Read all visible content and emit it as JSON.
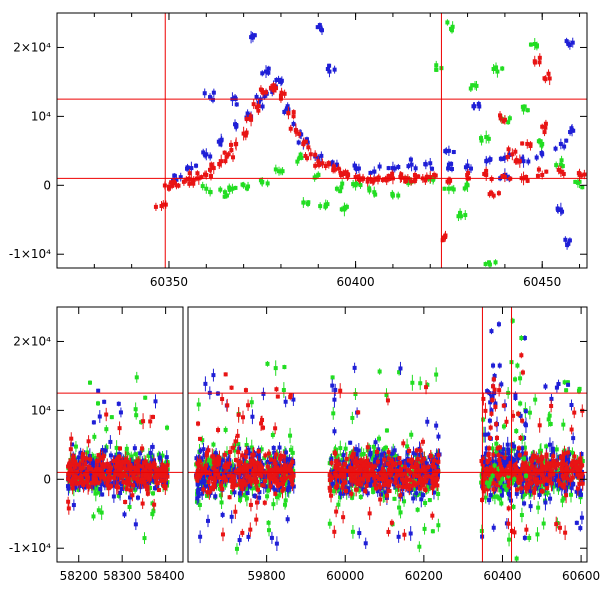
{
  "colors": {
    "blue": "#1f1fd6",
    "green": "#22dd22",
    "red": "#e81414",
    "reference_line": "#e00000",
    "axes": "#000000"
  },
  "chart_data": [
    {
      "type": "scatter",
      "title": "",
      "xlabel": "",
      "ylabel": "",
      "error_bars": true,
      "xlim": [
        60320,
        60462
      ],
      "ylim": [
        -12000,
        25000
      ],
      "x_ticks": [
        60350,
        60400,
        60450
      ],
      "x_tick_labels": [
        "60350",
        "60400",
        "60450"
      ],
      "y_ticks": [
        -10000,
        0,
        10000,
        20000
      ],
      "y_tick_labels": [
        "-1×10⁴",
        "0",
        "10⁴",
        "2×10⁴"
      ],
      "reference_lines": {
        "horizontal": [
          1000,
          12500
        ],
        "vertical": [
          60349,
          60423
        ]
      },
      "series": [
        {
          "color": "blue",
          "points": [
            [
              60352,
              800
            ],
            [
              60356,
              2500
            ],
            [
              60360,
              4500
            ],
            [
              60364,
              6500
            ],
            [
              60368,
              8500
            ],
            [
              60372,
              10000
            ],
            [
              60374,
              12000
            ],
            [
              60376,
              13500
            ],
            [
              60378,
              14500
            ],
            [
              60380,
              15000
            ],
            [
              60382,
              11000
            ],
            [
              60384,
              8000
            ],
            [
              60386,
              6000
            ],
            [
              60390,
              4000
            ],
            [
              60395,
              3000
            ],
            [
              60400,
              2500
            ],
            [
              60405,
              2000
            ],
            [
              60410,
              2500
            ],
            [
              60415,
              3000
            ],
            [
              60420,
              3200
            ],
            [
              60425,
              3000
            ],
            [
              60430,
              2800
            ],
            [
              60435,
              3500
            ],
            [
              60440,
              4000
            ],
            [
              60445,
              3500
            ],
            [
              60450,
              4500
            ],
            [
              60455,
              6000
            ],
            [
              60458,
              8000
            ],
            [
              60372,
              21500
            ],
            [
              60376,
              16500
            ],
            [
              60391,
              22500
            ],
            [
              60393,
              16500
            ],
            [
              60457,
              20500
            ],
            [
              60455,
              -3500
            ],
            [
              60457,
              -8500
            ],
            [
              60367,
              12500
            ],
            [
              60361,
              12800
            ],
            [
              60433,
              11800
            ],
            [
              60425,
              5000
            ],
            [
              60440,
              1500
            ]
          ]
        },
        {
          "color": "green",
          "points": [
            [
              60360,
              -500
            ],
            [
              60365,
              -1000
            ],
            [
              60370,
              0
            ],
            [
              60375,
              500
            ],
            [
              60380,
              2000
            ],
            [
              60385,
              4000
            ],
            [
              60390,
              1500
            ],
            [
              60395,
              -500
            ],
            [
              60400,
              0
            ],
            [
              60405,
              -1000
            ],
            [
              60410,
              -1500
            ],
            [
              60415,
              500
            ],
            [
              60420,
              1000
            ],
            [
              60425,
              -500
            ],
            [
              60430,
              0
            ],
            [
              60435,
              7000
            ],
            [
              60440,
              9500
            ],
            [
              60445,
              11000
            ],
            [
              60450,
              6000
            ],
            [
              60455,
              3000
            ],
            [
              60460,
              500
            ],
            [
              60386,
              -2500
            ],
            [
              60392,
              -2800
            ],
            [
              60397,
              -3500
            ],
            [
              60367,
              -500
            ],
            [
              60423,
              17000
            ],
            [
              60426,
              23000
            ],
            [
              60432,
              14500
            ],
            [
              60438,
              16500
            ],
            [
              60448,
              20500
            ],
            [
              60428,
              -4000
            ],
            [
              60436,
              -11500
            ]
          ]
        },
        {
          "color": "red",
          "points": [
            [
              60348,
              -3000
            ],
            [
              60350,
              -500
            ],
            [
              60352,
              0
            ],
            [
              60354,
              500
            ],
            [
              60356,
              800
            ],
            [
              60358,
              1000
            ],
            [
              60360,
              1500
            ],
            [
              60362,
              2500
            ],
            [
              60364,
              3500
            ],
            [
              60366,
              4500
            ],
            [
              60368,
              6000
            ],
            [
              60370,
              7500
            ],
            [
              60372,
              9500
            ],
            [
              60374,
              11500
            ],
            [
              60376,
              13500
            ],
            [
              60378,
              14500
            ],
            [
              60380,
              13000
            ],
            [
              60382,
              10500
            ],
            [
              60384,
              8000
            ],
            [
              60386,
              6000
            ],
            [
              60388,
              4500
            ],
            [
              60390,
              3500
            ],
            [
              60392,
              2800
            ],
            [
              60394,
              2200
            ],
            [
              60396,
              1800
            ],
            [
              60398,
              1500
            ],
            [
              60400,
              1200
            ],
            [
              60402,
              1000
            ],
            [
              60404,
              900
            ],
            [
              60406,
              800
            ],
            [
              60408,
              900
            ],
            [
              60410,
              1000
            ],
            [
              60412,
              1200
            ],
            [
              60414,
              1000
            ],
            [
              60416,
              900
            ],
            [
              60418,
              1000
            ],
            [
              60420,
              1200
            ],
            [
              60425,
              800
            ],
            [
              60430,
              1000
            ],
            [
              60435,
              1500
            ],
            [
              60440,
              1200
            ],
            [
              60445,
              1000
            ],
            [
              60450,
              1500
            ],
            [
              60455,
              2000
            ],
            [
              60460,
              1500
            ],
            [
              60424,
              -7500
            ],
            [
              60452,
              15500
            ],
            [
              60450,
              8500
            ],
            [
              60440,
              9500
            ],
            [
              60448,
              18000
            ],
            [
              60446,
              6000
            ],
            [
              60437,
              -1500
            ],
            [
              60442,
              4500
            ],
            [
              60444,
              3500
            ]
          ]
        }
      ]
    },
    {
      "type": "scatter",
      "title": "",
      "xlabel": "",
      "ylabel": "",
      "error_bars": true,
      "broken_x_axis": true,
      "x_segments": [
        {
          "xlim": [
            58150,
            58440
          ],
          "x_ticks": [
            58200,
            58300,
            58400
          ],
          "x_tick_labels": [
            "58200",
            "58300",
            "58400"
          ]
        },
        {
          "xlim": [
            59600,
            60615
          ],
          "x_ticks": [
            59800,
            60000,
            60200,
            60400,
            60600
          ],
          "x_tick_labels": [
            "59800",
            "60000",
            "60200",
            "60400",
            "60600"
          ]
        }
      ],
      "ylim": [
        -12000,
        25000
      ],
      "y_ticks": [
        -10000,
        0,
        10000,
        20000
      ],
      "y_tick_labels": [
        "-1×10⁴",
        "0",
        "10⁴",
        "2×10⁴"
      ],
      "reference_lines": {
        "horizontal": [
          1000,
          12500
        ],
        "vertical": [
          60349,
          60423
        ]
      },
      "observing_seasons": [
        {
          "range": [
            58175,
            58405
          ],
          "color": "blue",
          "spread": 4000,
          "outlier_spread": 10000
        },
        {
          "range": [
            58175,
            58405
          ],
          "color": "green",
          "spread": 4500,
          "outlier_spread": 12000
        },
        {
          "range": [
            58175,
            58405
          ],
          "color": "red",
          "spread": 3500,
          "outlier_spread": 8000
        },
        {
          "range": [
            59620,
            59870
          ],
          "color": "blue",
          "spread": 5000,
          "outlier_spread": 13000
        },
        {
          "range": [
            59620,
            59870
          ],
          "color": "green",
          "spread": 5500,
          "outlier_spread": 14000
        },
        {
          "range": [
            59620,
            59870
          ],
          "color": "red",
          "spread": 4500,
          "outlier_spread": 12000
        },
        {
          "range": [
            59960,
            60240
          ],
          "color": "blue",
          "spread": 5000,
          "outlier_spread": 13000
        },
        {
          "range": [
            59960,
            60240
          ],
          "color": "green",
          "spread": 5500,
          "outlier_spread": 14000
        },
        {
          "range": [
            59960,
            60240
          ],
          "color": "red",
          "spread": 4500,
          "outlier_spread": 12000
        },
        {
          "range": [
            60345,
            60605
          ],
          "color": "blue",
          "spread": 5000,
          "outlier_spread": 12000
        },
        {
          "range": [
            60345,
            60605
          ],
          "color": "green",
          "spread": 5500,
          "outlier_spread": 13000
        },
        {
          "range": [
            60345,
            60605
          ],
          "color": "red",
          "spread": 4000,
          "outlier_spread": 11000
        }
      ]
    }
  ]
}
